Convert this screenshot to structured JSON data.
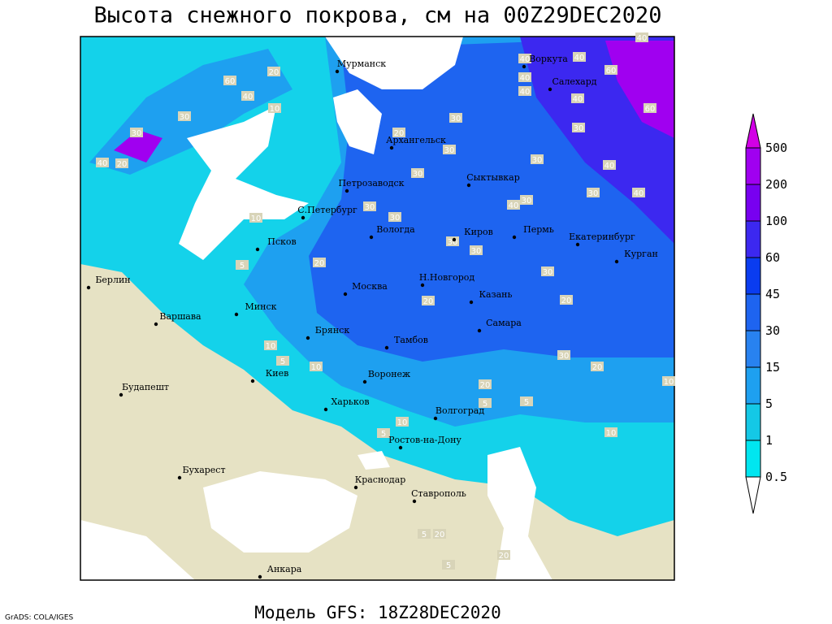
{
  "title": "Высота снежного покрова, см на 00Z29DEC2020",
  "footer": "Модель GFS: 18Z28DEC2020",
  "credit": "GrADS: COLA/IGES",
  "colorbar": [
    500,
    200,
    100,
    60,
    45,
    30,
    15,
    5,
    1,
    0.5
  ],
  "cities": [
    "Мурманск",
    "Воркута",
    "Салехард",
    "Архангельск",
    "Петрозаводск",
    "Сыктывкар",
    "С.Петербург",
    "Вологда",
    "Киров",
    "Пермь",
    "Екатеринбург",
    "Курган",
    "Псков",
    "Берлин",
    "Н.Новгород",
    "Казань",
    "Москва",
    "Минск",
    "Варшава",
    "Самара",
    "Брянск",
    "Тамбов",
    "Киев",
    "Воронеж",
    "Будапешт",
    "Харьков",
    "Волгоград",
    "Ростов-на-Дону",
    "Бухарест",
    "Краснодар",
    "Ставрополь",
    "Анкара"
  ],
  "contour_labels": [
    60,
    20,
    40,
    10,
    30,
    30,
    40,
    20,
    20,
    30,
    30,
    30,
    30,
    30,
    30,
    30,
    40,
    30,
    40,
    40,
    40,
    30,
    30,
    40,
    30,
    40,
    60,
    60,
    40,
    40,
    40,
    10,
    5,
    20,
    20,
    20,
    30,
    5,
    10,
    10,
    20,
    30,
    10,
    20,
    5,
    10,
    10,
    5,
    5,
    5,
    20,
    20,
    5
  ]
}
